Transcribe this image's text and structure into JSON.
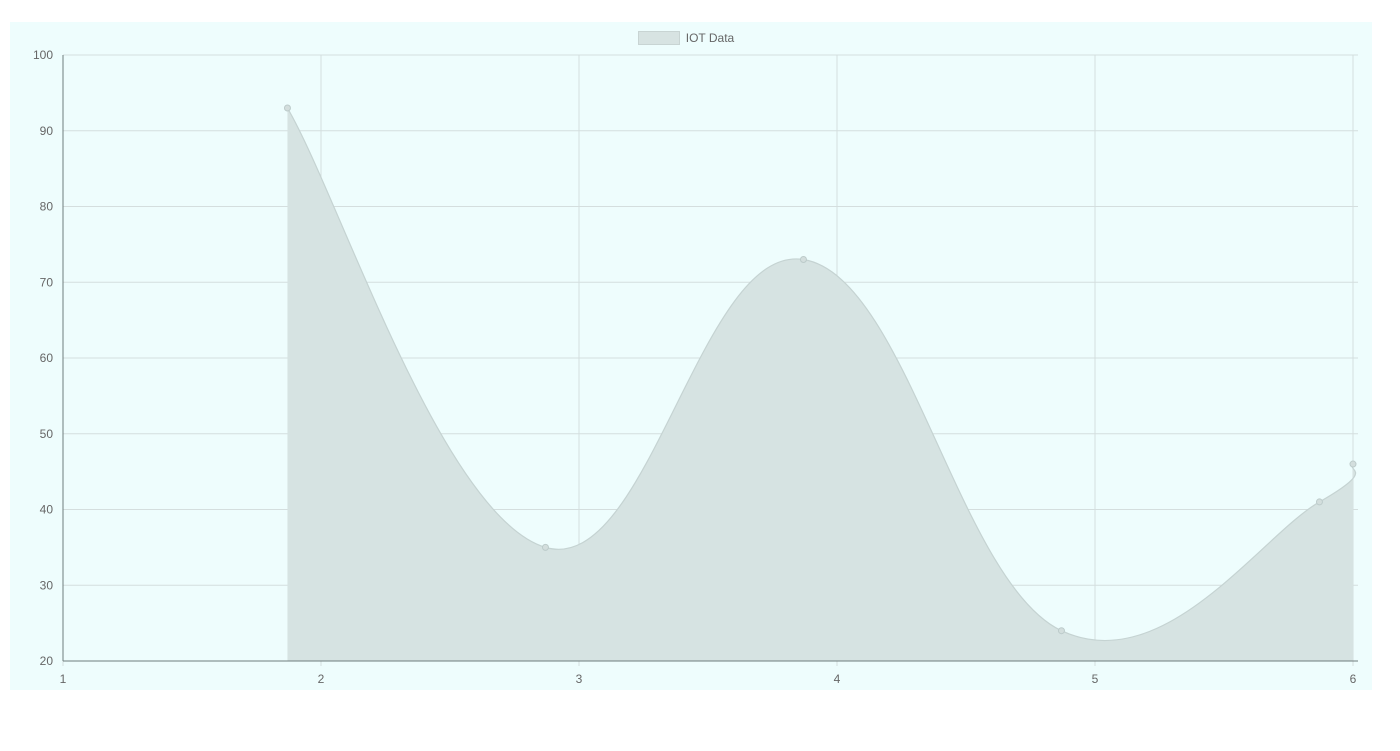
{
  "chart_data": {
    "type": "area",
    "title": "",
    "xlabel": "",
    "ylabel": "",
    "series": [
      {
        "name": "IOT Data",
        "points": [
          {
            "x": 1.87,
            "y": 93
          },
          {
            "x": 2.87,
            "y": 35
          },
          {
            "x": 3.87,
            "y": 73
          },
          {
            "x": 4.87,
            "y": 24
          },
          {
            "x": 5.87,
            "y": 41
          },
          {
            "x": 6.0,
            "y": 46
          }
        ]
      }
    ],
    "xlim": [
      1,
      6
    ],
    "ylim": [
      20,
      100
    ],
    "x_ticks": [
      "1",
      "2",
      "3",
      "4",
      "5",
      "6"
    ],
    "y_ticks": [
      "20",
      "30",
      "40",
      "50",
      "60",
      "70",
      "80",
      "90",
      "100"
    ],
    "grid": true,
    "legend_position": "top-center",
    "colors": {
      "panel_background": "#eefdfd",
      "area_fill": "#d6e3e2",
      "line": "#c5d3d2",
      "grid": "#d4dede",
      "axis": "#6f7d7d"
    }
  }
}
